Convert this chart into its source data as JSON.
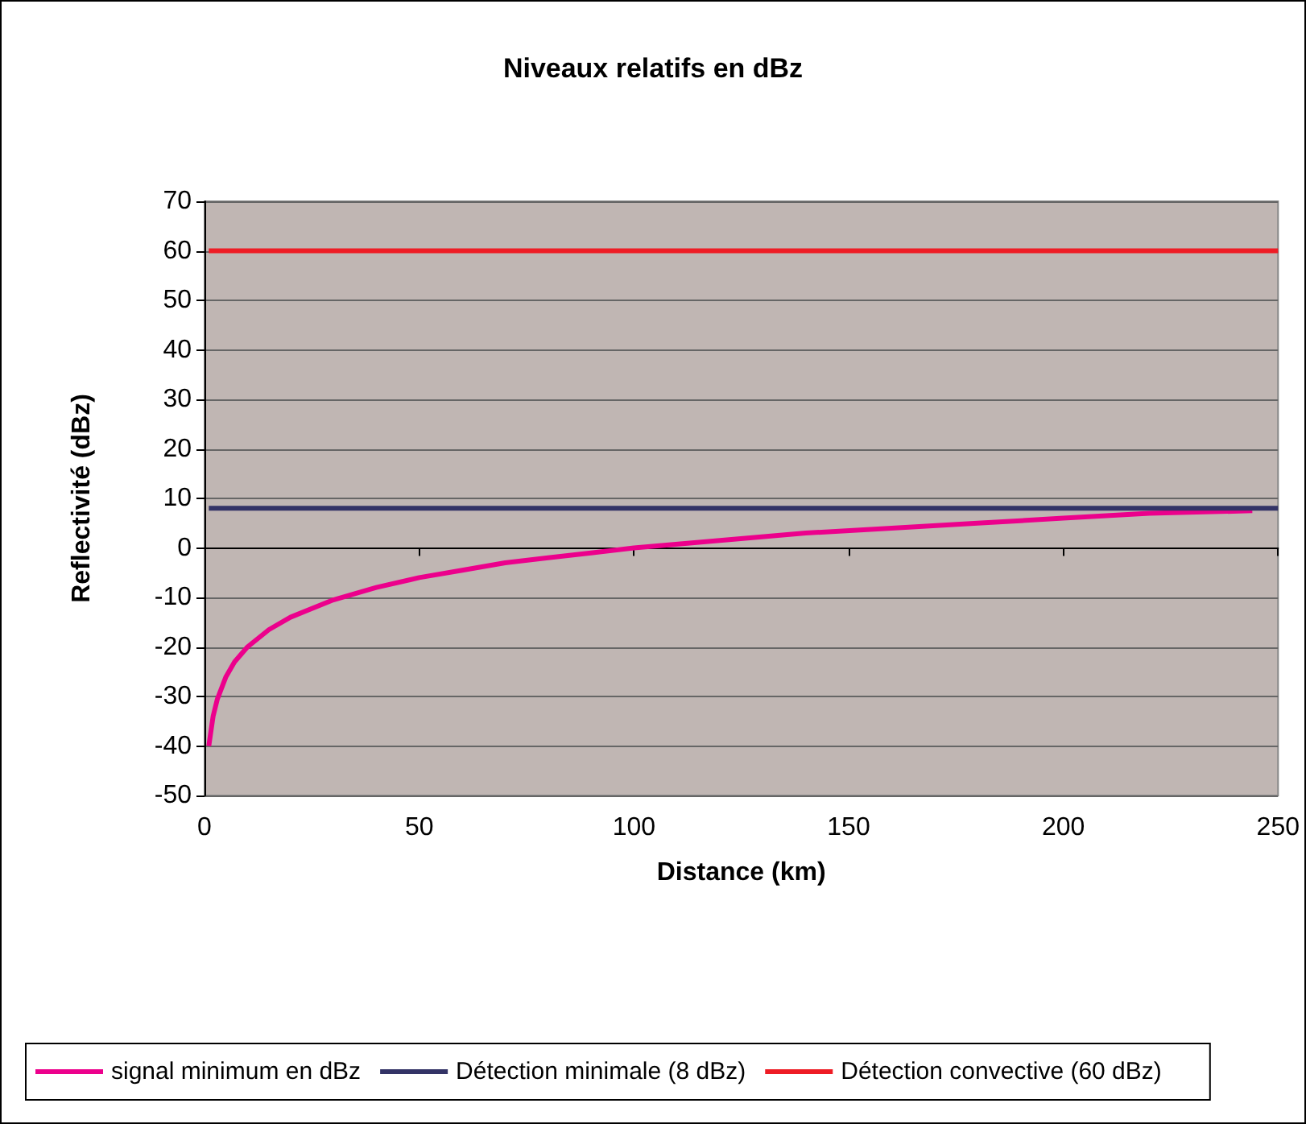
{
  "chart_data": {
    "type": "line",
    "title": "Niveaux relatifs en dBz",
    "xlabel": "Distance (km)",
    "ylabel": "Reflectivité (dBz)",
    "xlim": [
      0,
      250
    ],
    "xticks": [
      0,
      50,
      100,
      150,
      200,
      250
    ],
    "ylim": [
      -50,
      70
    ],
    "yticks": [
      -50,
      -40,
      -30,
      -20,
      -10,
      0,
      10,
      20,
      30,
      40,
      50,
      60,
      70
    ],
    "grid": "y",
    "legend": "bottom",
    "marker": "none",
    "line_style": "solid",
    "series": [
      {
        "name": "signal minimum en dBz",
        "color": "#ec008c",
        "x": [
          1,
          2,
          3,
          5,
          7,
          10,
          15,
          20,
          30,
          40,
          50,
          60,
          70,
          80,
          90,
          100,
          120,
          140,
          160,
          180,
          200,
          220,
          244
        ],
        "values": [
          -40,
          -34,
          -30.5,
          -26,
          -23,
          -20,
          -16.5,
          -14,
          -10.5,
          -8,
          -6,
          -4.5,
          -3,
          -2,
          -1,
          0,
          1.5,
          3,
          4,
          5,
          6,
          7,
          7.5
        ]
      },
      {
        "name": "Détection minimale (8 dBz)",
        "color": "#333366",
        "x": [
          1,
          250
        ],
        "values": [
          8,
          8
        ]
      },
      {
        "name": "Détection convective (60 dBz)",
        "color": "#ee1c25",
        "x": [
          1,
          250
        ],
        "values": [
          60,
          60
        ]
      }
    ]
  }
}
